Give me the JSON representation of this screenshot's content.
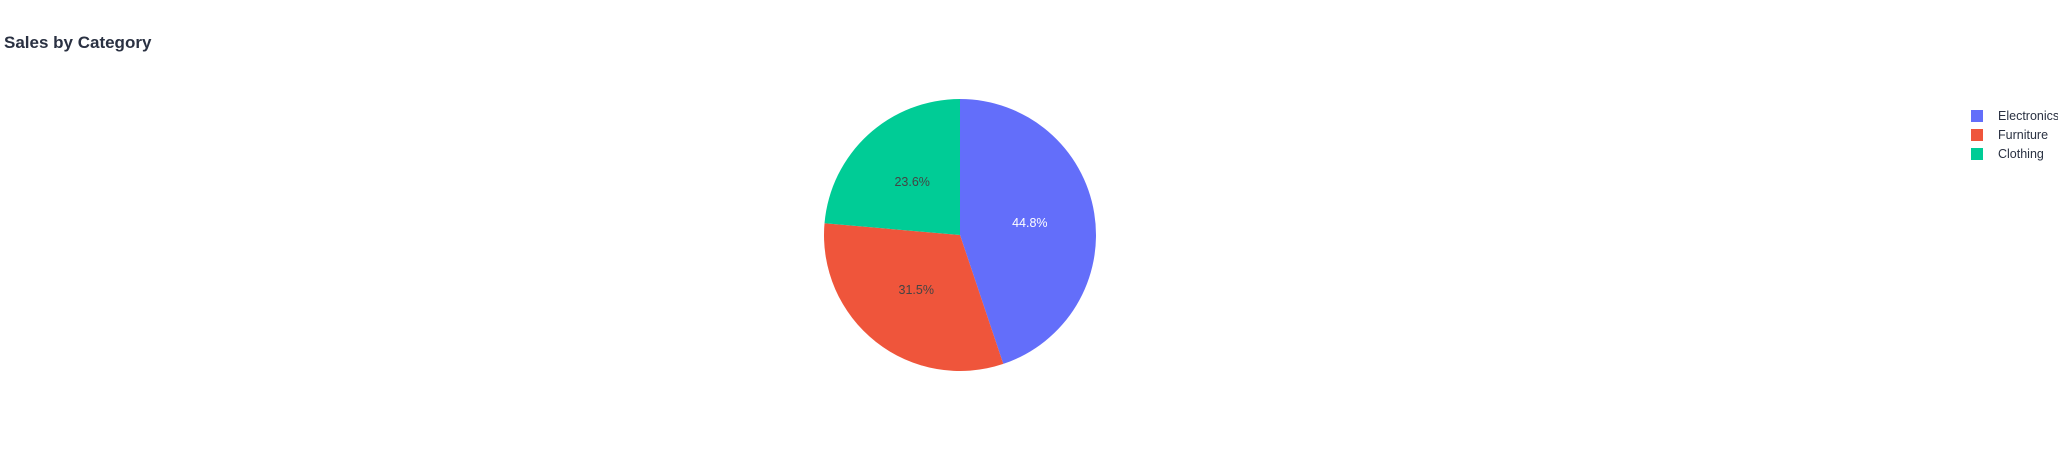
{
  "chart_data": {
    "type": "pie",
    "title": "Sales by Category",
    "categories": [
      "Electronics",
      "Furniture",
      "Clothing"
    ],
    "values": [
      44.8,
      31.5,
      23.6
    ],
    "labels": [
      "44.8%",
      "31.5%",
      "23.6%"
    ],
    "colors": [
      "#636efa",
      "#ef553b",
      "#00cc96"
    ],
    "label_colors": [
      "#ffffff",
      "#444444",
      "#444444"
    ],
    "direction": "clockwise",
    "start_angle": "top",
    "legend": "top-right"
  }
}
